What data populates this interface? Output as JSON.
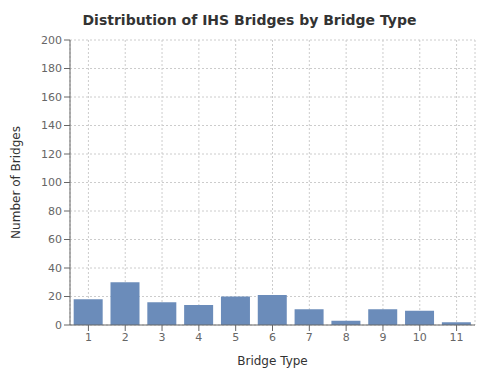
{
  "chart_data": {
    "type": "bar",
    "title": "Distribution of IHS Bridges by Bridge Type",
    "xlabel": "Bridge Type",
    "ylabel": "Number of Bridges",
    "categories": [
      "1",
      "2",
      "3",
      "4",
      "5",
      "6",
      "7",
      "8",
      "9",
      "10",
      "11"
    ],
    "values": [
      18,
      30,
      16,
      14,
      20,
      21,
      11,
      3,
      11,
      10,
      2
    ],
    "color": "#6b8cba",
    "ylim": [
      0,
      200
    ],
    "yticks": [
      0,
      20,
      40,
      60,
      80,
      100,
      120,
      140,
      160,
      180,
      200
    ],
    "grid": true
  }
}
